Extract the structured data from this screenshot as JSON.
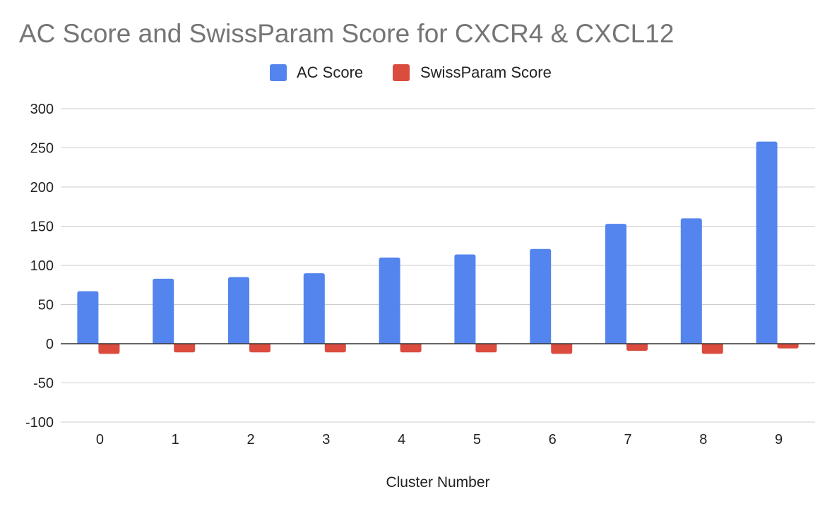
{
  "chart_data": {
    "type": "bar",
    "title": "AC Score and SwissParam Score for CXCR4 & CXCL12",
    "xlabel": "Cluster Number",
    "ylabel": "",
    "categories": [
      "0",
      "1",
      "2",
      "3",
      "4",
      "5",
      "6",
      "7",
      "8",
      "9"
    ],
    "series": [
      {
        "name": "AC Score",
        "color": "#5484ed",
        "values": [
          67,
          83,
          85,
          90,
          110,
          114,
          121,
          153,
          160,
          258
        ]
      },
      {
        "name": "SwissParam Score",
        "color": "#db4c3f",
        "values": [
          -13,
          -11,
          -11,
          -11,
          -11,
          -11,
          -13,
          -9,
          -13,
          -6
        ]
      }
    ],
    "ylim": [
      -100,
      300
    ],
    "yticks": [
      300,
      250,
      200,
      150,
      100,
      50,
      0,
      -50,
      -100
    ],
    "grid": true,
    "legend_position": "top-center"
  }
}
